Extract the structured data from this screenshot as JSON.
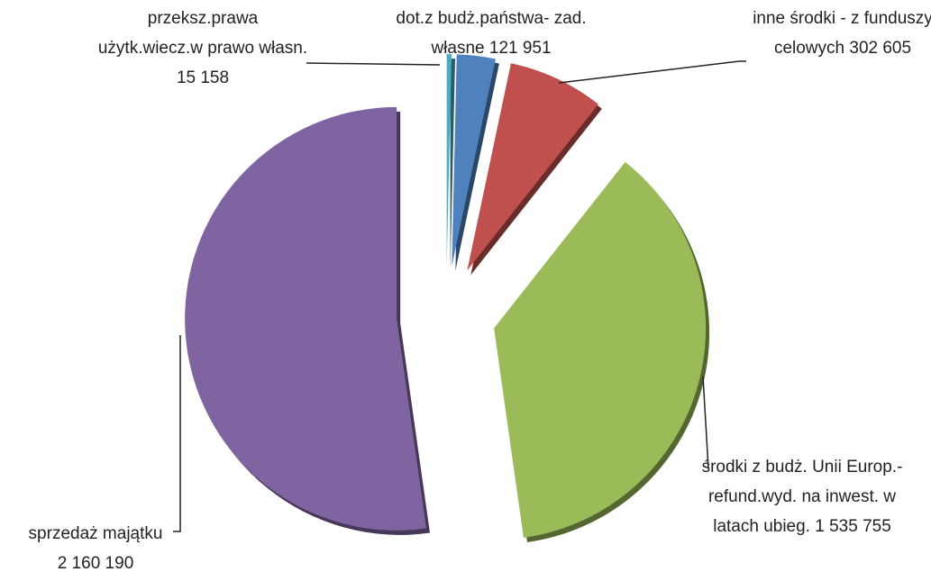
{
  "chart_data": {
    "type": "pie",
    "categories": [
      "przeksz.prawa użytk.wiecz.w prawo własn.",
      "dot.z budż.państwa- zad. własne",
      "inne środki - z funduszy celowych",
      "środki z budż. Unii Europ.- refund.wyd. na inwest. w latach ubieg.",
      "sprzedaż majątku"
    ],
    "values": [
      15158,
      121951,
      302605,
      1535755,
      2160190
    ],
    "value_labels": [
      "15 158",
      "121 951",
      "302 605",
      "1 535 755",
      "2 160 190"
    ],
    "colors": [
      "#4bacc6",
      "#4f81bd",
      "#c0504d",
      "#9bbb59",
      "#8064a2"
    ]
  }
}
